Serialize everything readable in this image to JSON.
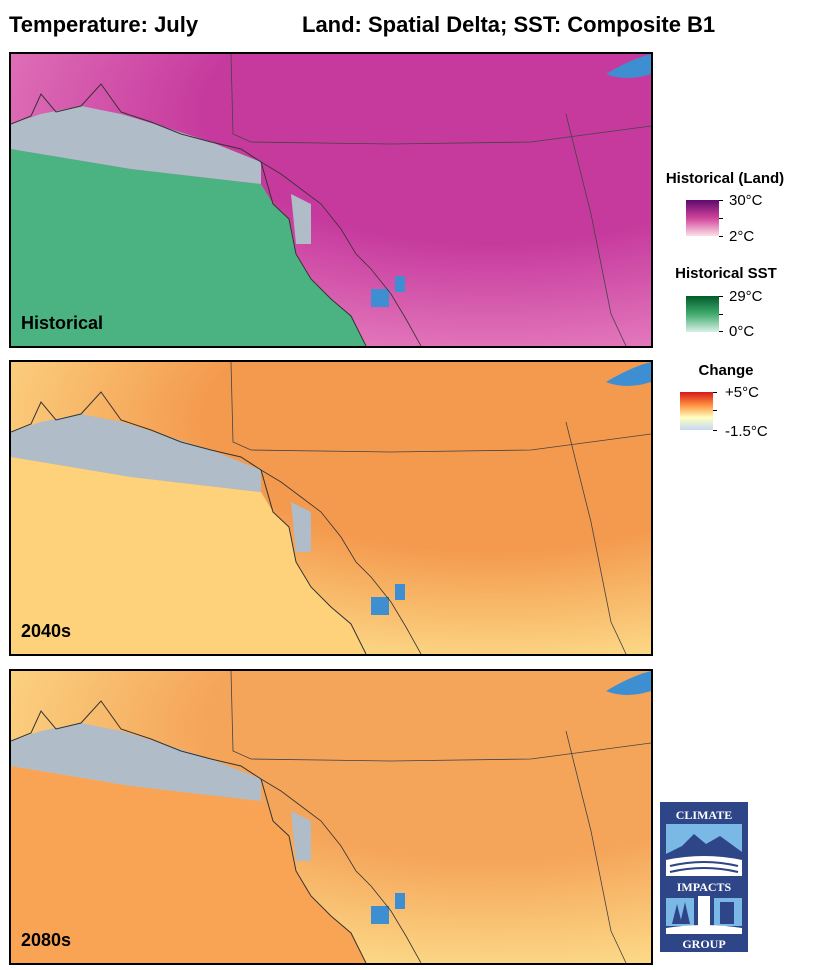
{
  "title_left": "Temperature: July",
  "title_right": "Land: Spatial Delta; SST: Composite B1",
  "panels": [
    {
      "label": "Historical",
      "land_color": "#c63a9e",
      "ocean_color": "#4bb382"
    },
    {
      "label": "2040s",
      "land_color": "#f49a4e",
      "ocean_color": "#fdd27a"
    },
    {
      "label": "2080s",
      "land_color": "#f5a55a",
      "ocean_color": "#f9a455"
    }
  ],
  "legends": {
    "land": {
      "title": "Historical (Land)",
      "max": "30°C",
      "min": "2°C",
      "colors": [
        "#5c0a6e",
        "#d0439a",
        "#fde0e6"
      ]
    },
    "sst": {
      "title": "Historical SST",
      "max": "29°C",
      "min": "0°C",
      "colors": [
        "#005a2a",
        "#41ab6d",
        "#d8f0e8"
      ]
    },
    "change": {
      "title": "Change",
      "max": "+5°C",
      "min": "-1.5°C",
      "colors": [
        "#d7191c",
        "#fd8d3c",
        "#ffffbf",
        "#c6d8f5"
      ]
    }
  },
  "logo": {
    "line1": "CLIMATE",
    "line2": "IMPACTS",
    "line3": "GROUP"
  },
  "colors": {
    "no_data": "#b0bcc8",
    "lake": "#3d8fd1"
  }
}
